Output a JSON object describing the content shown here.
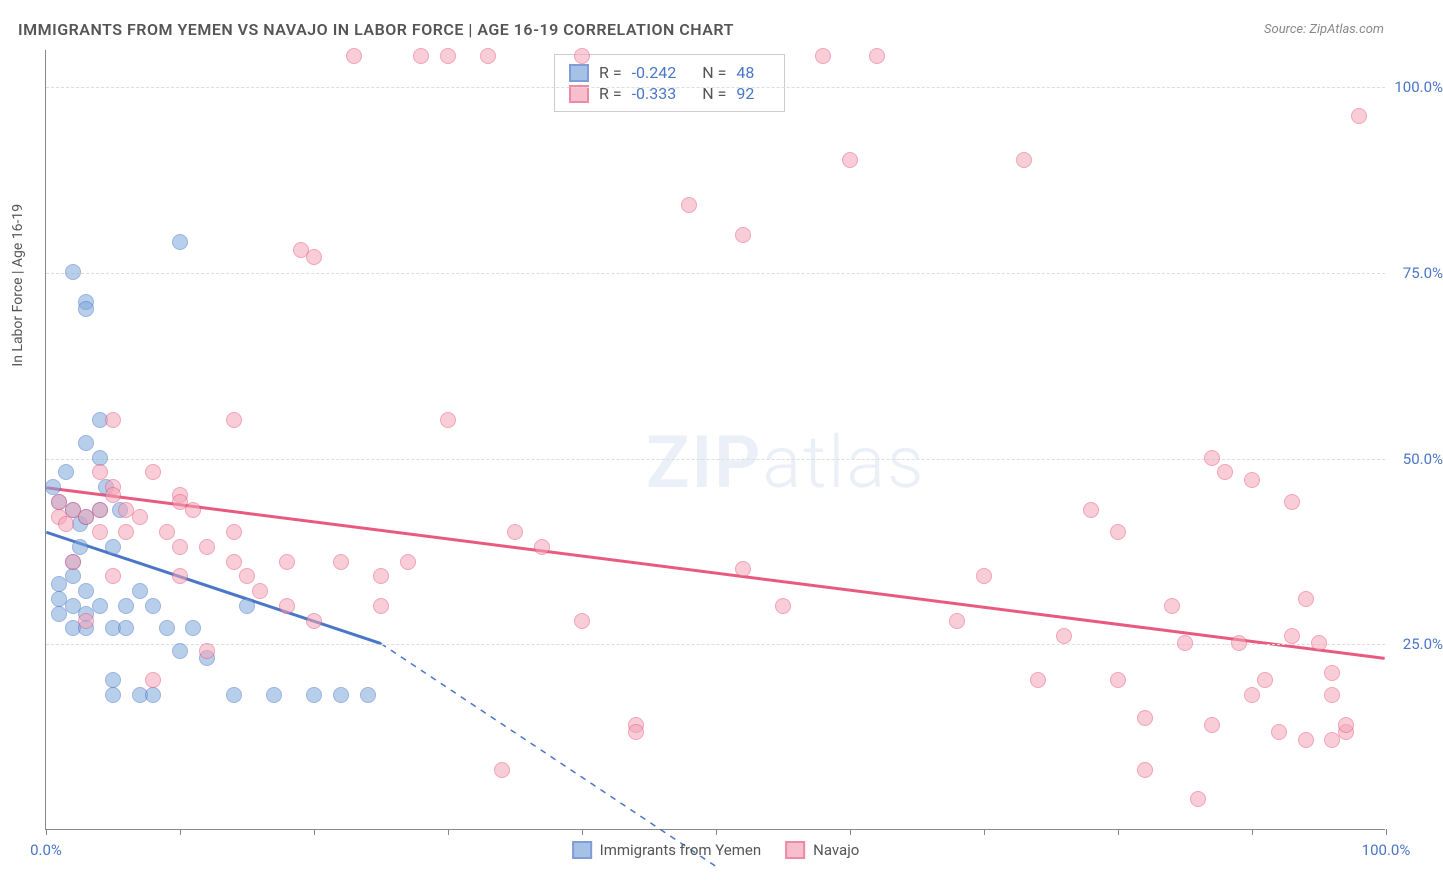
{
  "title": "IMMIGRANTS FROM YEMEN VS NAVAJO IN LABOR FORCE | AGE 16-19 CORRELATION CHART",
  "source": "Source: ZipAtlas.com",
  "y_axis_title": "In Labor Force | Age 16-19",
  "watermark_a": "ZIP",
  "watermark_b": "atlas",
  "chart": {
    "type": "scatter",
    "background_color": "#ffffff",
    "grid_color": "#dddddd",
    "axis_color": "#888888",
    "tick_label_color": "#4a76c7",
    "xlim": [
      0,
      100
    ],
    "ylim": [
      0,
      105
    ],
    "xtick_positions": [
      0,
      10,
      20,
      30,
      40,
      50,
      60,
      70,
      80,
      90,
      100
    ],
    "xtick_labels": {
      "0": "0.0%",
      "100": "100.0%"
    },
    "ytick_positions": [
      25,
      50,
      75,
      100
    ],
    "ytick_labels": {
      "25": "25.0%",
      "50": "50.0%",
      "75": "75.0%",
      "100": "100.0%"
    },
    "marker_radius": 8,
    "marker_opacity": 0.55,
    "series": [
      {
        "name": "Immigrants from Yemen",
        "color": "#7fa8dc",
        "stroke": "#4a76c7",
        "R": "-0.242",
        "N": "48",
        "trend": {
          "x1": 0,
          "y1": 40,
          "x2": 25,
          "y2": 25,
          "dash_x2": 50,
          "dash_y2": -5,
          "width": 3
        },
        "points": [
          [
            0.5,
            46
          ],
          [
            1,
            33
          ],
          [
            1,
            31
          ],
          [
            1,
            29
          ],
          [
            1,
            44
          ],
          [
            1.5,
            48
          ],
          [
            2,
            75
          ],
          [
            2,
            43
          ],
          [
            2,
            36
          ],
          [
            2,
            34
          ],
          [
            2,
            30
          ],
          [
            2,
            27
          ],
          [
            2.5,
            41
          ],
          [
            2.5,
            38
          ],
          [
            3,
            52
          ],
          [
            3,
            71
          ],
          [
            3,
            70
          ],
          [
            3,
            42
          ],
          [
            3,
            32
          ],
          [
            3,
            29
          ],
          [
            3,
            27
          ],
          [
            4,
            55
          ],
          [
            4,
            50
          ],
          [
            4,
            43
          ],
          [
            4,
            30
          ],
          [
            4.5,
            46
          ],
          [
            5,
            38
          ],
          [
            5,
            27
          ],
          [
            5,
            20
          ],
          [
            5,
            18
          ],
          [
            5.5,
            43
          ],
          [
            6,
            30
          ],
          [
            6,
            27
          ],
          [
            7,
            32
          ],
          [
            7,
            18
          ],
          [
            8,
            30
          ],
          [
            8,
            18
          ],
          [
            9,
            27
          ],
          [
            10,
            24
          ],
          [
            10,
            79
          ],
          [
            11,
            27
          ],
          [
            12,
            23
          ],
          [
            14,
            18
          ],
          [
            15,
            30
          ],
          [
            17,
            18
          ],
          [
            20,
            18
          ],
          [
            22,
            18
          ],
          [
            24,
            18
          ]
        ]
      },
      {
        "name": "Navajo",
        "color": "#f4a5b8",
        "stroke": "#e85a7f",
        "R": "-0.333",
        "N": "92",
        "trend": {
          "x1": 0,
          "y1": 46,
          "x2": 100,
          "y2": 23,
          "width": 3
        },
        "points": [
          [
            1,
            44
          ],
          [
            1,
            42
          ],
          [
            1.5,
            41
          ],
          [
            2,
            43
          ],
          [
            2,
            36
          ],
          [
            3,
            42
          ],
          [
            3,
            28
          ],
          [
            4,
            48
          ],
          [
            4,
            43
          ],
          [
            4,
            40
          ],
          [
            5,
            55
          ],
          [
            5,
            46
          ],
          [
            5,
            45
          ],
          [
            5,
            34
          ],
          [
            6,
            43
          ],
          [
            6,
            40
          ],
          [
            7,
            42
          ],
          [
            8,
            48
          ],
          [
            8,
            20
          ],
          [
            9,
            40
          ],
          [
            10,
            45
          ],
          [
            10,
            44
          ],
          [
            10,
            38
          ],
          [
            10,
            34
          ],
          [
            11,
            43
          ],
          [
            12,
            38
          ],
          [
            12,
            24
          ],
          [
            14,
            55
          ],
          [
            14,
            40
          ],
          [
            14,
            36
          ],
          [
            15,
            34
          ],
          [
            16,
            32
          ],
          [
            18,
            36
          ],
          [
            18,
            30
          ],
          [
            19,
            78
          ],
          [
            20,
            28
          ],
          [
            20,
            77
          ],
          [
            22,
            36
          ],
          [
            23,
            104
          ],
          [
            25,
            34
          ],
          [
            25,
            30
          ],
          [
            27,
            36
          ],
          [
            28,
            104
          ],
          [
            30,
            104
          ],
          [
            30,
            55
          ],
          [
            33,
            104
          ],
          [
            34,
            8
          ],
          [
            35,
            40
          ],
          [
            37,
            38
          ],
          [
            40,
            28
          ],
          [
            40,
            104
          ],
          [
            44,
            14
          ],
          [
            44,
            13
          ],
          [
            48,
            84
          ],
          [
            52,
            35
          ],
          [
            52,
            80
          ],
          [
            55,
            30
          ],
          [
            58,
            104
          ],
          [
            60,
            90
          ],
          [
            62,
            104
          ],
          [
            68,
            28
          ],
          [
            70,
            34
          ],
          [
            73,
            90
          ],
          [
            74,
            20
          ],
          [
            76,
            26
          ],
          [
            78,
            43
          ],
          [
            80,
            40
          ],
          [
            80,
            20
          ],
          [
            82,
            15
          ],
          [
            82,
            8
          ],
          [
            84,
            30
          ],
          [
            85,
            25
          ],
          [
            86,
            4
          ],
          [
            87,
            14
          ],
          [
            87,
            50
          ],
          [
            88,
            48
          ],
          [
            89,
            25
          ],
          [
            90,
            18
          ],
          [
            90,
            47
          ],
          [
            91,
            20
          ],
          [
            92,
            13
          ],
          [
            93,
            44
          ],
          [
            93,
            26
          ],
          [
            94,
            12
          ],
          [
            94,
            31
          ],
          [
            95,
            25
          ],
          [
            96,
            18
          ],
          [
            96,
            21
          ],
          [
            96,
            12
          ],
          [
            97,
            13
          ],
          [
            97,
            14
          ],
          [
            98,
            96
          ]
        ]
      }
    ]
  },
  "legend": {
    "items": [
      {
        "label": "Immigrants from Yemen",
        "color": "#7fa8dc",
        "stroke": "#4a76c7"
      },
      {
        "label": "Navajo",
        "color": "#f4a5b8",
        "stroke": "#e85a7f"
      }
    ]
  }
}
